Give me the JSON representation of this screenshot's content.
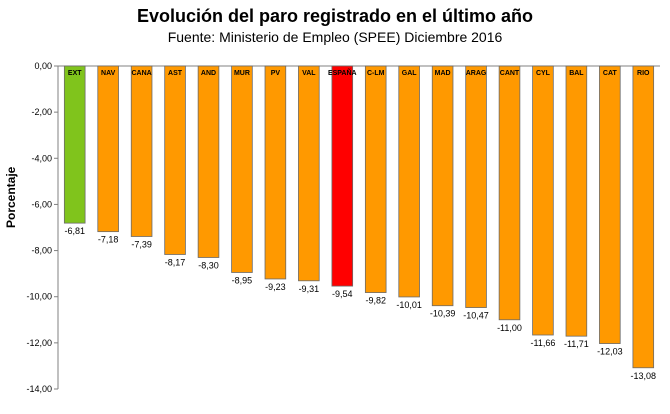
{
  "chart_data": {
    "type": "bar",
    "title": "Evolución del paro registrado en el último año",
    "subtitle": "Fuente: Ministerio de Empleo (SPEE) Diciembre 2016",
    "xlabel": "",
    "ylabel": "Porcentaje",
    "ylim": [
      -14,
      0
    ],
    "yticks": [
      0,
      -2,
      -4,
      -6,
      -8,
      -10,
      -12,
      -14
    ],
    "ytick_labels": [
      "0,00",
      "-2,00",
      "-4,00",
      "-6,00",
      "-8,00",
      "-10,00",
      "-12,00",
      "-14,00"
    ],
    "grid": false,
    "categories": [
      "EXT",
      "NAV",
      "CANA",
      "AST",
      "AND",
      "MUR",
      "PV",
      "VAL",
      "ESPAÑA",
      "C-LM",
      "GAL",
      "MAD",
      "ARAG",
      "CANT",
      "CYL",
      "BAL",
      "CAT",
      "RIO"
    ],
    "values": [
      -6.81,
      -7.18,
      -7.39,
      -8.17,
      -8.3,
      -8.95,
      -9.23,
      -9.31,
      -9.54,
      -9.82,
      -10.01,
      -10.39,
      -10.47,
      -11.0,
      -11.66,
      -11.71,
      -12.03,
      -13.08
    ],
    "value_labels": [
      "-6,81",
      "-7,18",
      "-7,39",
      "-8,17",
      "-8,30",
      "-8,95",
      "-9,23",
      "-9,31",
      "-9,54",
      "-9,82",
      "-10,01",
      "-10,39",
      "-10,47",
      "-11,00",
      "-11,66",
      "-11,71",
      "-12,03",
      "-13,08"
    ],
    "colors": {
      "default": "#ff9900",
      "best": "#80c41c",
      "national": "#ff0000"
    },
    "highlight": {
      "EXT": "best",
      "ESPAÑA": "national"
    }
  }
}
